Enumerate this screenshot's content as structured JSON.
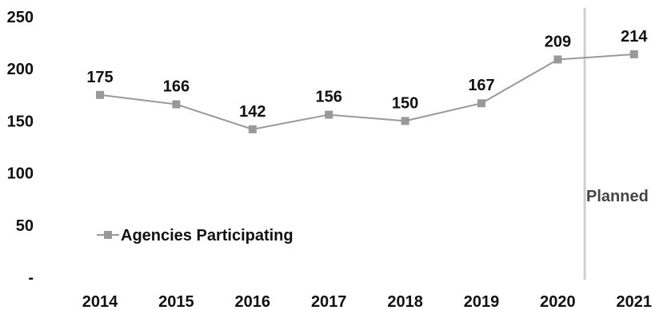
{
  "chart_data": {
    "type": "line",
    "categories": [
      "2014",
      "2015",
      "2016",
      "2017",
      "2018",
      "2019",
      "2020",
      "2021"
    ],
    "series": [
      {
        "name": "Agencies Participating",
        "values": [
          175,
          166,
          142,
          156,
          150,
          167,
          209,
          214
        ],
        "data_labels": [
          "175",
          "166",
          "142",
          "156",
          "150",
          "167",
          "209",
          "214"
        ]
      }
    ],
    "title": "",
    "xlabel": "",
    "ylabel": "",
    "ylim": [
      0,
      250
    ],
    "yticks": [
      0,
      50,
      100,
      150,
      200,
      250
    ],
    "ytick_labels": [
      "-",
      "50",
      "100",
      "150",
      "200",
      "250"
    ],
    "grid": false,
    "legend": "bottom-left",
    "annotation": {
      "text": "Planned",
      "separator_between": [
        "2020",
        "2021"
      ]
    },
    "colors": {
      "series": "#999999",
      "separator": "#cfcfcf",
      "text": "#111111"
    },
    "marker": "square"
  }
}
